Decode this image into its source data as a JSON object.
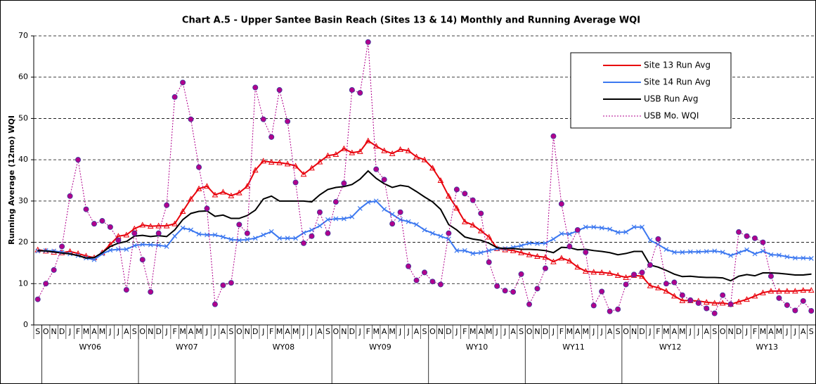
{
  "chart_data": {
    "type": "line",
    "title": "Chart A.5 - Upper Santee Basin Reach (Sites 13 & 14) Monthly and Running Average WQI",
    "y_label": "Running Average (12mo) WQI",
    "categories": [
      "S",
      "O",
      "N",
      "D",
      "J",
      "F",
      "M",
      "A",
      "M",
      "J",
      "J",
      "A",
      "S",
      "O",
      "N",
      "D",
      "J",
      "F",
      "M",
      "A",
      "M",
      "J",
      "J",
      "A",
      "S",
      "O",
      "N",
      "D",
      "J",
      "F",
      "M",
      "A",
      "M",
      "J",
      "J",
      "A",
      "S",
      "O",
      "N",
      "D",
      "J",
      "F",
      "M",
      "A",
      "M",
      "J",
      "J",
      "A",
      "S",
      "O",
      "N",
      "D",
      "J",
      "F",
      "M",
      "A",
      "M",
      "J",
      "J",
      "A",
      "S",
      "O",
      "N",
      "D",
      "J",
      "F",
      "M",
      "A",
      "M",
      "J",
      "J",
      "A",
      "S",
      "O",
      "N",
      "D",
      "J",
      "F",
      "M",
      "A",
      "M",
      "J",
      "J",
      "A",
      "S",
      "O",
      "N",
      "D",
      "J",
      "F",
      "M",
      "A",
      "M",
      "J",
      "J",
      "A",
      "S"
    ],
    "x_groups": [
      "WY06",
      "WY07",
      "WY08",
      "WY09",
      "WY10",
      "WY11",
      "WY12",
      "WY13"
    ],
    "ylim": [
      0,
      70
    ],
    "yticks": [
      0,
      10,
      20,
      30,
      40,
      50,
      60,
      70
    ],
    "grid": true,
    "legend": "upper right",
    "series": [
      {
        "name": "Site 13 Run Avg",
        "color": "#e8000b",
        "marker": "triangle",
        "dashed": false,
        "values": [
          18.2,
          17.9,
          17.6,
          17.5,
          17.8,
          17.3,
          16.7,
          16.3,
          17.5,
          19.5,
          21.5,
          21.8,
          23.3,
          24.2,
          23.9,
          24,
          24,
          24.5,
          27.5,
          30.5,
          33,
          33.6,
          31.5,
          32.2,
          31.3,
          32,
          33.6,
          37.5,
          39.7,
          39.4,
          39.3,
          39,
          38.5,
          36.5,
          38,
          39.5,
          41,
          41.3,
          42.7,
          41.7,
          42,
          44.6,
          43.3,
          42.2,
          41.5,
          42.5,
          42.2,
          40.7,
          40,
          38,
          35,
          31.2,
          28.3,
          25,
          24.2,
          22.8,
          21.3,
          18.5,
          18.2,
          18,
          17.5,
          17,
          16.6,
          16.4,
          15.3,
          16.2,
          15.5,
          14,
          13,
          12.8,
          12.7,
          12.5,
          12,
          11.5,
          12,
          11.8,
          9.5,
          9,
          8.2,
          7,
          5.9,
          5.9,
          5.8,
          5.5,
          5.3,
          5.3,
          5,
          5.6,
          6.2,
          7,
          7.8,
          8.2,
          8.2,
          8.2,
          8.2,
          8.4,
          8.4
        ]
      },
      {
        "name": "Site 14 Run Avg",
        "color": "#3c78f0",
        "marker": "x",
        "dashed": false,
        "values": [
          17.9,
          18,
          17.9,
          17.6,
          17.2,
          16.8,
          16.2,
          15.8,
          17.2,
          18.1,
          18.3,
          18.3,
          19.2,
          19.5,
          19.4,
          19.3,
          19,
          21.5,
          23.5,
          23,
          22,
          21.8,
          21.8,
          21.3,
          20.7,
          20.5,
          20.7,
          21,
          21.8,
          22.6,
          21,
          21,
          21,
          22.3,
          23,
          24,
          25.5,
          25.7,
          25.7,
          26.2,
          28.2,
          29.7,
          30,
          28,
          26.8,
          25.5,
          25,
          24.3,
          23,
          22.2,
          21.5,
          20.8,
          18,
          18,
          17.3,
          17.5,
          18,
          18.5,
          18.5,
          18.8,
          19.2,
          19.8,
          19.7,
          19.8,
          20.8,
          22.1,
          22,
          22.8,
          23.7,
          23.7,
          23.5,
          23.2,
          22.4,
          22.5,
          23.7,
          23.7,
          20.5,
          19.5,
          18.3,
          17.6,
          17.6,
          17.7,
          17.7,
          17.8,
          17.9,
          17.6,
          16.8,
          17.5,
          18.2,
          17.2,
          17.9,
          17,
          16.9,
          16.5,
          16.2,
          16.2,
          16.1
        ]
      },
      {
        "name": "USB Run Avg",
        "color": "#000000",
        "marker": "none",
        "dashed": false,
        "values": [
          18,
          17.9,
          17.7,
          17.4,
          17.2,
          16.8,
          16.2,
          16.3,
          17.5,
          19,
          19.8,
          20.2,
          21.5,
          21.7,
          21.4,
          21.6,
          21.4,
          23,
          25.5,
          27,
          27.5,
          27.6,
          26.3,
          26.6,
          25.8,
          25.8,
          26.5,
          27.8,
          30.5,
          31.2,
          30,
          30,
          30,
          30,
          29.8,
          31.5,
          32.8,
          33.3,
          33.5,
          34,
          35.3,
          37.3,
          35.5,
          34.2,
          33.3,
          33.8,
          33.5,
          32.3,
          31,
          29.8,
          28,
          24.3,
          23,
          21.3,
          20.8,
          20.5,
          19.8,
          18.7,
          18.5,
          18.5,
          18.3,
          18.3,
          18.2,
          18,
          17.5,
          18.8,
          18.7,
          18.2,
          18.3,
          18,
          17.8,
          17.5,
          17,
          17.3,
          17.8,
          17.8,
          14.5,
          14,
          13.2,
          12.3,
          11.7,
          11.8,
          11.6,
          11.5,
          11.5,
          11.4,
          10.7,
          11.8,
          12.2,
          11.9,
          12.6,
          12.6,
          12.5,
          12.3,
          12.1,
          12.1,
          12.3
        ]
      },
      {
        "name": "USB Mo. WQI",
        "color": "#b0008c",
        "marker": "circle",
        "dashed": true,
        "values": [
          6.2,
          10,
          13.3,
          19,
          31.2,
          40,
          28,
          24.5,
          25.2,
          23.7,
          20.5,
          8.5,
          22.2,
          15.8,
          8,
          22.2,
          29,
          55.2,
          58.7,
          49.8,
          38.2,
          28.2,
          5,
          9.6,
          10.2,
          24.3,
          22.2,
          57.5,
          49.8,
          45.5,
          56.9,
          49.3,
          34.5,
          19.8,
          21.5,
          27.3,
          22.2,
          29.8,
          34.3,
          56.9,
          56.2,
          68.5,
          37.7,
          35.2,
          24.5,
          27.3,
          14.2,
          10.8,
          12.7,
          10.5,
          9.8,
          22.2,
          32.8,
          31.8,
          30.2,
          27,
          15.2,
          9.4,
          8.3,
          8,
          12.3,
          5,
          8.8,
          13.7,
          45.7,
          29.3,
          19,
          23,
          17.6,
          4.7,
          8.1,
          3.3,
          3.8,
          9.8,
          12.2,
          12.7,
          14.5,
          20.8,
          10,
          10.3,
          7.2,
          6,
          5.3,
          4,
          2.8,
          7.2,
          5,
          22.5,
          21.5,
          21,
          20,
          11.8,
          6.5,
          4.8,
          3.5,
          5.8,
          3.4
        ]
      }
    ]
  }
}
